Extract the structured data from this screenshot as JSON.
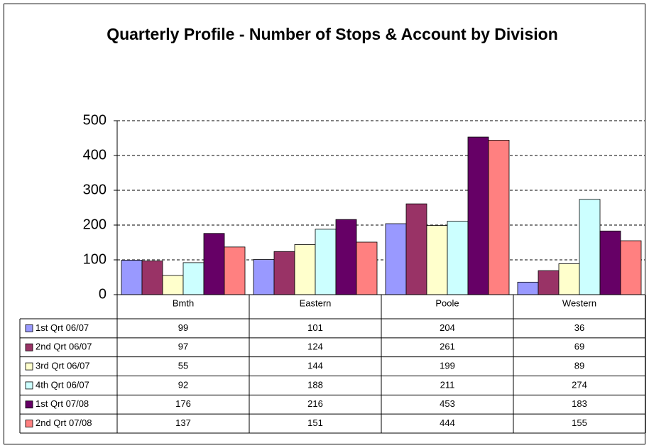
{
  "chart_data": {
    "type": "bar",
    "title": "Quarterly Profile - Number of Stops & Account by Division",
    "categories": [
      "Bmth",
      "Eastern",
      "Poole",
      "Western"
    ],
    "series": [
      {
        "name": "1st Qrt 06/07",
        "color": "#9999ff",
        "values": [
          99,
          101,
          204,
          36
        ]
      },
      {
        "name": "2nd Qrt 06/07",
        "color": "#993366",
        "values": [
          97,
          124,
          261,
          69
        ]
      },
      {
        "name": "3rd Qrt 06/07",
        "color": "#ffffcc",
        "values": [
          55,
          144,
          199,
          89
        ]
      },
      {
        "name": "4th Qrt 06/07",
        "color": "#ccffff",
        "values": [
          92,
          188,
          211,
          274
        ]
      },
      {
        "name": "1st Qrt 07/08",
        "color": "#660066",
        "values": [
          176,
          216,
          453,
          183
        ]
      },
      {
        "name": "2nd Qrt 07/08",
        "color": "#ff8080",
        "values": [
          137,
          151,
          444,
          155
        ]
      }
    ],
    "ylim": [
      0,
      500
    ],
    "yticks": [
      0,
      100,
      200,
      300,
      400,
      500
    ],
    "grid": true
  }
}
